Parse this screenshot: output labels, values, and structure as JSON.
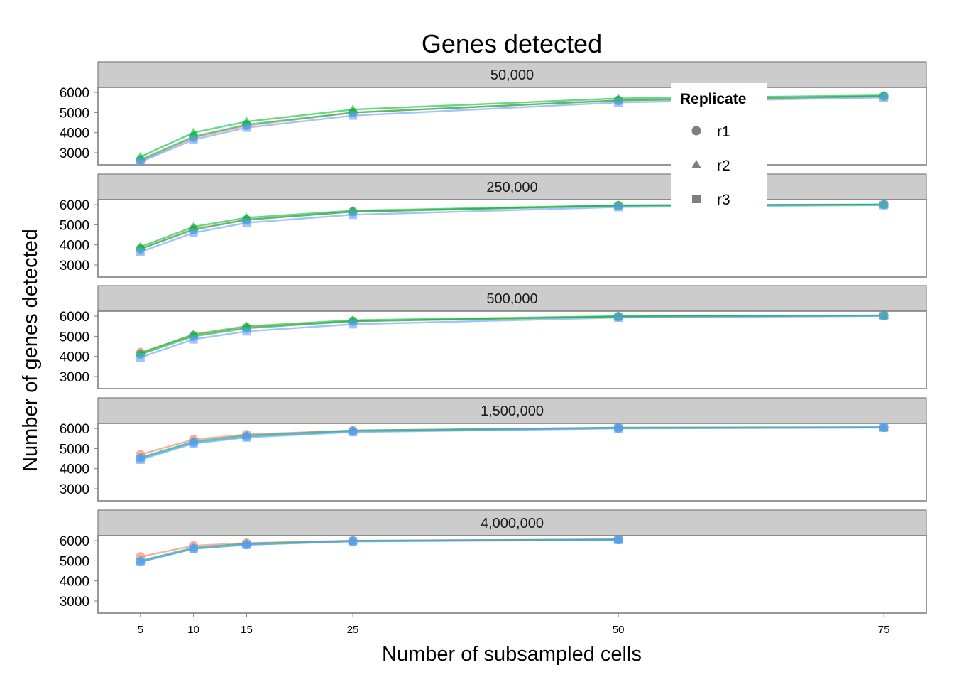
{
  "chart_data": {
    "type": "line",
    "title": "Genes detected",
    "xlabel": "Number of subsampled cells",
    "ylabel": "Number of genes detected",
    "x_ticks": [
      5,
      10,
      15,
      25,
      50,
      75
    ],
    "y_ticks": [
      3000,
      4000,
      5000,
      6000
    ],
    "xlim": [
      1,
      79
    ],
    "ylim": [
      2400,
      6250
    ],
    "grid": false,
    "legend": {
      "title": "Replicate",
      "position": "top-right",
      "entries": [
        {
          "label": "r1",
          "shape": "circle"
        },
        {
          "label": "r2",
          "shape": "triangle"
        },
        {
          "label": "r3",
          "shape": "square"
        }
      ]
    },
    "colors": {
      "red": "#F8766D",
      "green": "#00BA38",
      "blue": "#619CFF",
      "teal": "#36A3D9",
      "panel_strip": "#CCCCCC",
      "panel_border": "#7F7F7F"
    },
    "panels": [
      {
        "label": "50,000",
        "series": [
          {
            "color": "#F8766D",
            "shape": "circle",
            "x": [
              5,
              10,
              15,
              25,
              50,
              75
            ],
            "y": [
              2600,
              3750,
              4350,
              5000,
              5600,
              5800
            ]
          },
          {
            "color": "#00BA38",
            "shape": "triangle",
            "x": [
              5,
              10,
              15,
              25,
              50,
              75
            ],
            "y": [
              2800,
              4000,
              4550,
              5150,
              5700,
              5850
            ]
          },
          {
            "color": "#00BA38",
            "shape": "circle",
            "x": [
              5,
              10,
              15,
              25,
              50,
              75
            ],
            "y": [
              2650,
              3800,
              4400,
              5000,
              5600,
              5820
            ]
          },
          {
            "color": "#619CFF",
            "shape": "square",
            "x": [
              5,
              10,
              15,
              25,
              50,
              75
            ],
            "y": [
              2550,
              3650,
              4250,
              4850,
              5500,
              5750
            ]
          }
        ]
      },
      {
        "label": "250,000",
        "series": [
          {
            "color": "#F8766D",
            "shape": "circle",
            "x": [
              5,
              10,
              15,
              25,
              50,
              75
            ],
            "y": [
              3800,
              4800,
              5250,
              5650,
              5950,
              6000
            ]
          },
          {
            "color": "#00BA38",
            "shape": "triangle",
            "x": [
              5,
              10,
              15,
              25,
              50,
              75
            ],
            "y": [
              3900,
              4900,
              5350,
              5700,
              5970,
              6010
            ]
          },
          {
            "color": "#00BA38",
            "shape": "circle",
            "x": [
              5,
              10,
              15,
              25,
              50,
              75
            ],
            "y": [
              3800,
              4750,
              5250,
              5650,
              5950,
              6000
            ]
          },
          {
            "color": "#619CFF",
            "shape": "square",
            "x": [
              5,
              10,
              15,
              25,
              50,
              75
            ],
            "y": [
              3650,
              4600,
              5100,
              5500,
              5880,
              5980
            ]
          }
        ]
      },
      {
        "label": "500,000",
        "series": [
          {
            "color": "#F8766D",
            "shape": "circle",
            "x": [
              5,
              10,
              15,
              25,
              50,
              75
            ],
            "y": [
              4200,
              5050,
              5450,
              5750,
              5980,
              6030
            ]
          },
          {
            "color": "#00BA38",
            "shape": "triangle",
            "x": [
              5,
              10,
              15,
              25,
              50,
              75
            ],
            "y": [
              4150,
              5100,
              5500,
              5800,
              6000,
              6040
            ]
          },
          {
            "color": "#00BA38",
            "shape": "circle",
            "x": [
              5,
              10,
              15,
              25,
              50,
              75
            ],
            "y": [
              4100,
              5000,
              5400,
              5750,
              5980,
              6030
            ]
          },
          {
            "color": "#619CFF",
            "shape": "square",
            "x": [
              5,
              10,
              15,
              25,
              50,
              75
            ],
            "y": [
              3950,
              4850,
              5250,
              5600,
              5930,
              6010
            ]
          }
        ]
      },
      {
        "label": "1,500,000",
        "series": [
          {
            "color": "#F8766D",
            "shape": "circle",
            "x": [
              5,
              10,
              15,
              25,
              50,
              75
            ],
            "y": [
              4700,
              5450,
              5700,
              5900,
              6030,
              6050
            ]
          },
          {
            "color": "#00BA38",
            "shape": "triangle",
            "x": [
              5,
              10,
              15,
              25,
              50,
              75
            ],
            "y": [
              4550,
              5350,
              5650,
              5900,
              6040,
              6060
            ]
          },
          {
            "color": "#36A3D9",
            "shape": "circle",
            "x": [
              5,
              10,
              15,
              25,
              50,
              75
            ],
            "y": [
              4500,
              5300,
              5600,
              5850,
              6020,
              6050
            ]
          },
          {
            "color": "#619CFF",
            "shape": "square",
            "x": [
              5,
              10,
              15,
              25,
              50,
              75
            ],
            "y": [
              4450,
              5250,
              5550,
              5820,
              6000,
              6040
            ]
          }
        ]
      },
      {
        "label": "4,000,000",
        "series": [
          {
            "color": "#F8766D",
            "shape": "circle",
            "x": [
              5,
              10,
              15,
              25,
              50
            ],
            "y": [
              5200,
              5750,
              5880,
              6000,
              6060
            ]
          },
          {
            "color": "#00BA38",
            "shape": "triangle",
            "x": [
              5,
              10,
              15,
              25,
              50
            ],
            "y": [
              5000,
              5650,
              5850,
              5990,
              6060
            ]
          },
          {
            "color": "#36A3D9",
            "shape": "circle",
            "x": [
              5,
              10,
              15,
              25,
              50
            ],
            "y": [
              4950,
              5600,
              5800,
              5970,
              6050
            ]
          },
          {
            "color": "#619CFF",
            "shape": "square",
            "x": [
              5,
              10,
              15,
              25,
              50
            ],
            "y": [
              4950,
              5600,
              5800,
              5960,
              6040
            ]
          }
        ]
      }
    ]
  }
}
